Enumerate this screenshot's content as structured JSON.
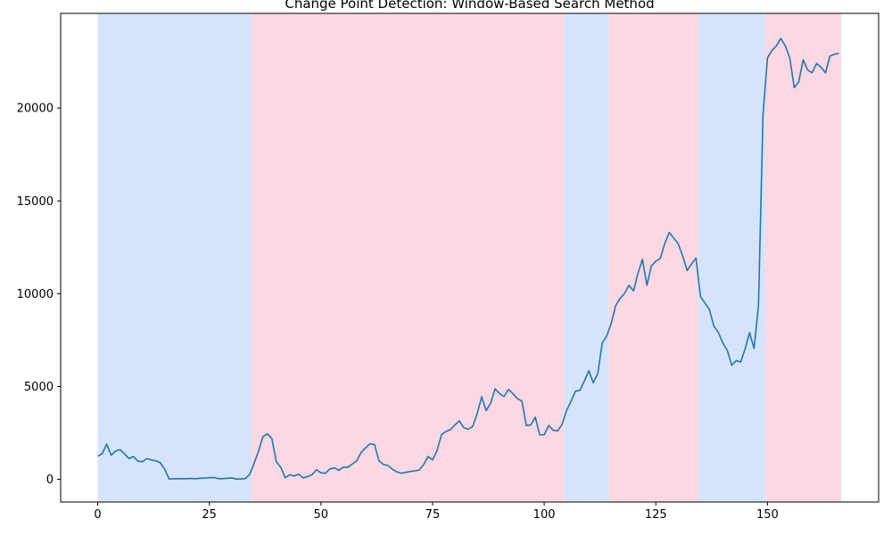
{
  "chart_data": {
    "type": "line",
    "title": "Change Point Detection: Window-Based Search Method",
    "xlabel": "",
    "ylabel": "",
    "xlim": [
      -8.3,
      174.9
    ],
    "ylim": [
      -1220,
      25100
    ],
    "xticks": [
      0,
      25,
      50,
      75,
      100,
      125,
      150
    ],
    "yticks": [
      0,
      5000,
      10000,
      15000,
      20000
    ],
    "grid": false,
    "legend": "none",
    "line_color": "#1f77b4",
    "segment_colors": [
      "#d6e4fb",
      "#fbd8e2"
    ],
    "segments": [
      {
        "start": 0,
        "end": 34.5
      },
      {
        "start": 34.5,
        "end": 104.5
      },
      {
        "start": 104.5,
        "end": 114.5
      },
      {
        "start": 114.5,
        "end": 134.5
      },
      {
        "start": 134.5,
        "end": 149.5
      },
      {
        "start": 149.5,
        "end": 166.5
      }
    ],
    "series": [
      {
        "values": [
          1250,
          1380,
          1900,
          1300,
          1520,
          1600,
          1380,
          1120,
          1230,
          980,
          950,
          1120,
          1050,
          1000,
          900,
          550,
          20,
          30,
          30,
          40,
          40,
          50,
          40,
          60,
          70,
          90,
          100,
          40,
          40,
          60,
          80,
          20,
          20,
          40,
          250,
          850,
          1500,
          2300,
          2450,
          2200,
          950,
          650,
          80,
          250,
          180,
          280,
          80,
          150,
          250,
          520,
          350,
          330,
          560,
          620,
          490,
          650,
          650,
          820,
          1000,
          1450,
          1700,
          1920,
          1870,
          1000,
          800,
          750,
          550,
          400,
          330,
          380,
          420,
          460,
          500,
          800,
          1230,
          1050,
          1550,
          2400,
          2580,
          2680,
          2930,
          3150,
          2780,
          2700,
          2850,
          3550,
          4450,
          3700,
          4100,
          4880,
          4620,
          4460,
          4850,
          4620,
          4350,
          4220,
          2900,
          2930,
          3350,
          2400,
          2400,
          2900,
          2650,
          2610,
          2950,
          3700,
          4200,
          4750,
          4800,
          5300,
          5850,
          5200,
          5700,
          7350,
          7720,
          8400,
          9350,
          9750,
          10020,
          10450,
          10150,
          11100,
          11850,
          10450,
          11500,
          11750,
          11900,
          12700,
          13300,
          13000,
          12700,
          12050,
          11250,
          11600,
          11920,
          9850,
          9500,
          9150,
          8250,
          7920,
          7350,
          6950,
          6150,
          6400,
          6320,
          7020,
          7900,
          7050,
          9400,
          19600,
          22700,
          23100,
          23350,
          23750,
          23350,
          22700,
          21100,
          21400,
          22600,
          22050,
          21900,
          22400,
          22200,
          21900,
          22800,
          22900,
          22950
        ]
      }
    ]
  }
}
